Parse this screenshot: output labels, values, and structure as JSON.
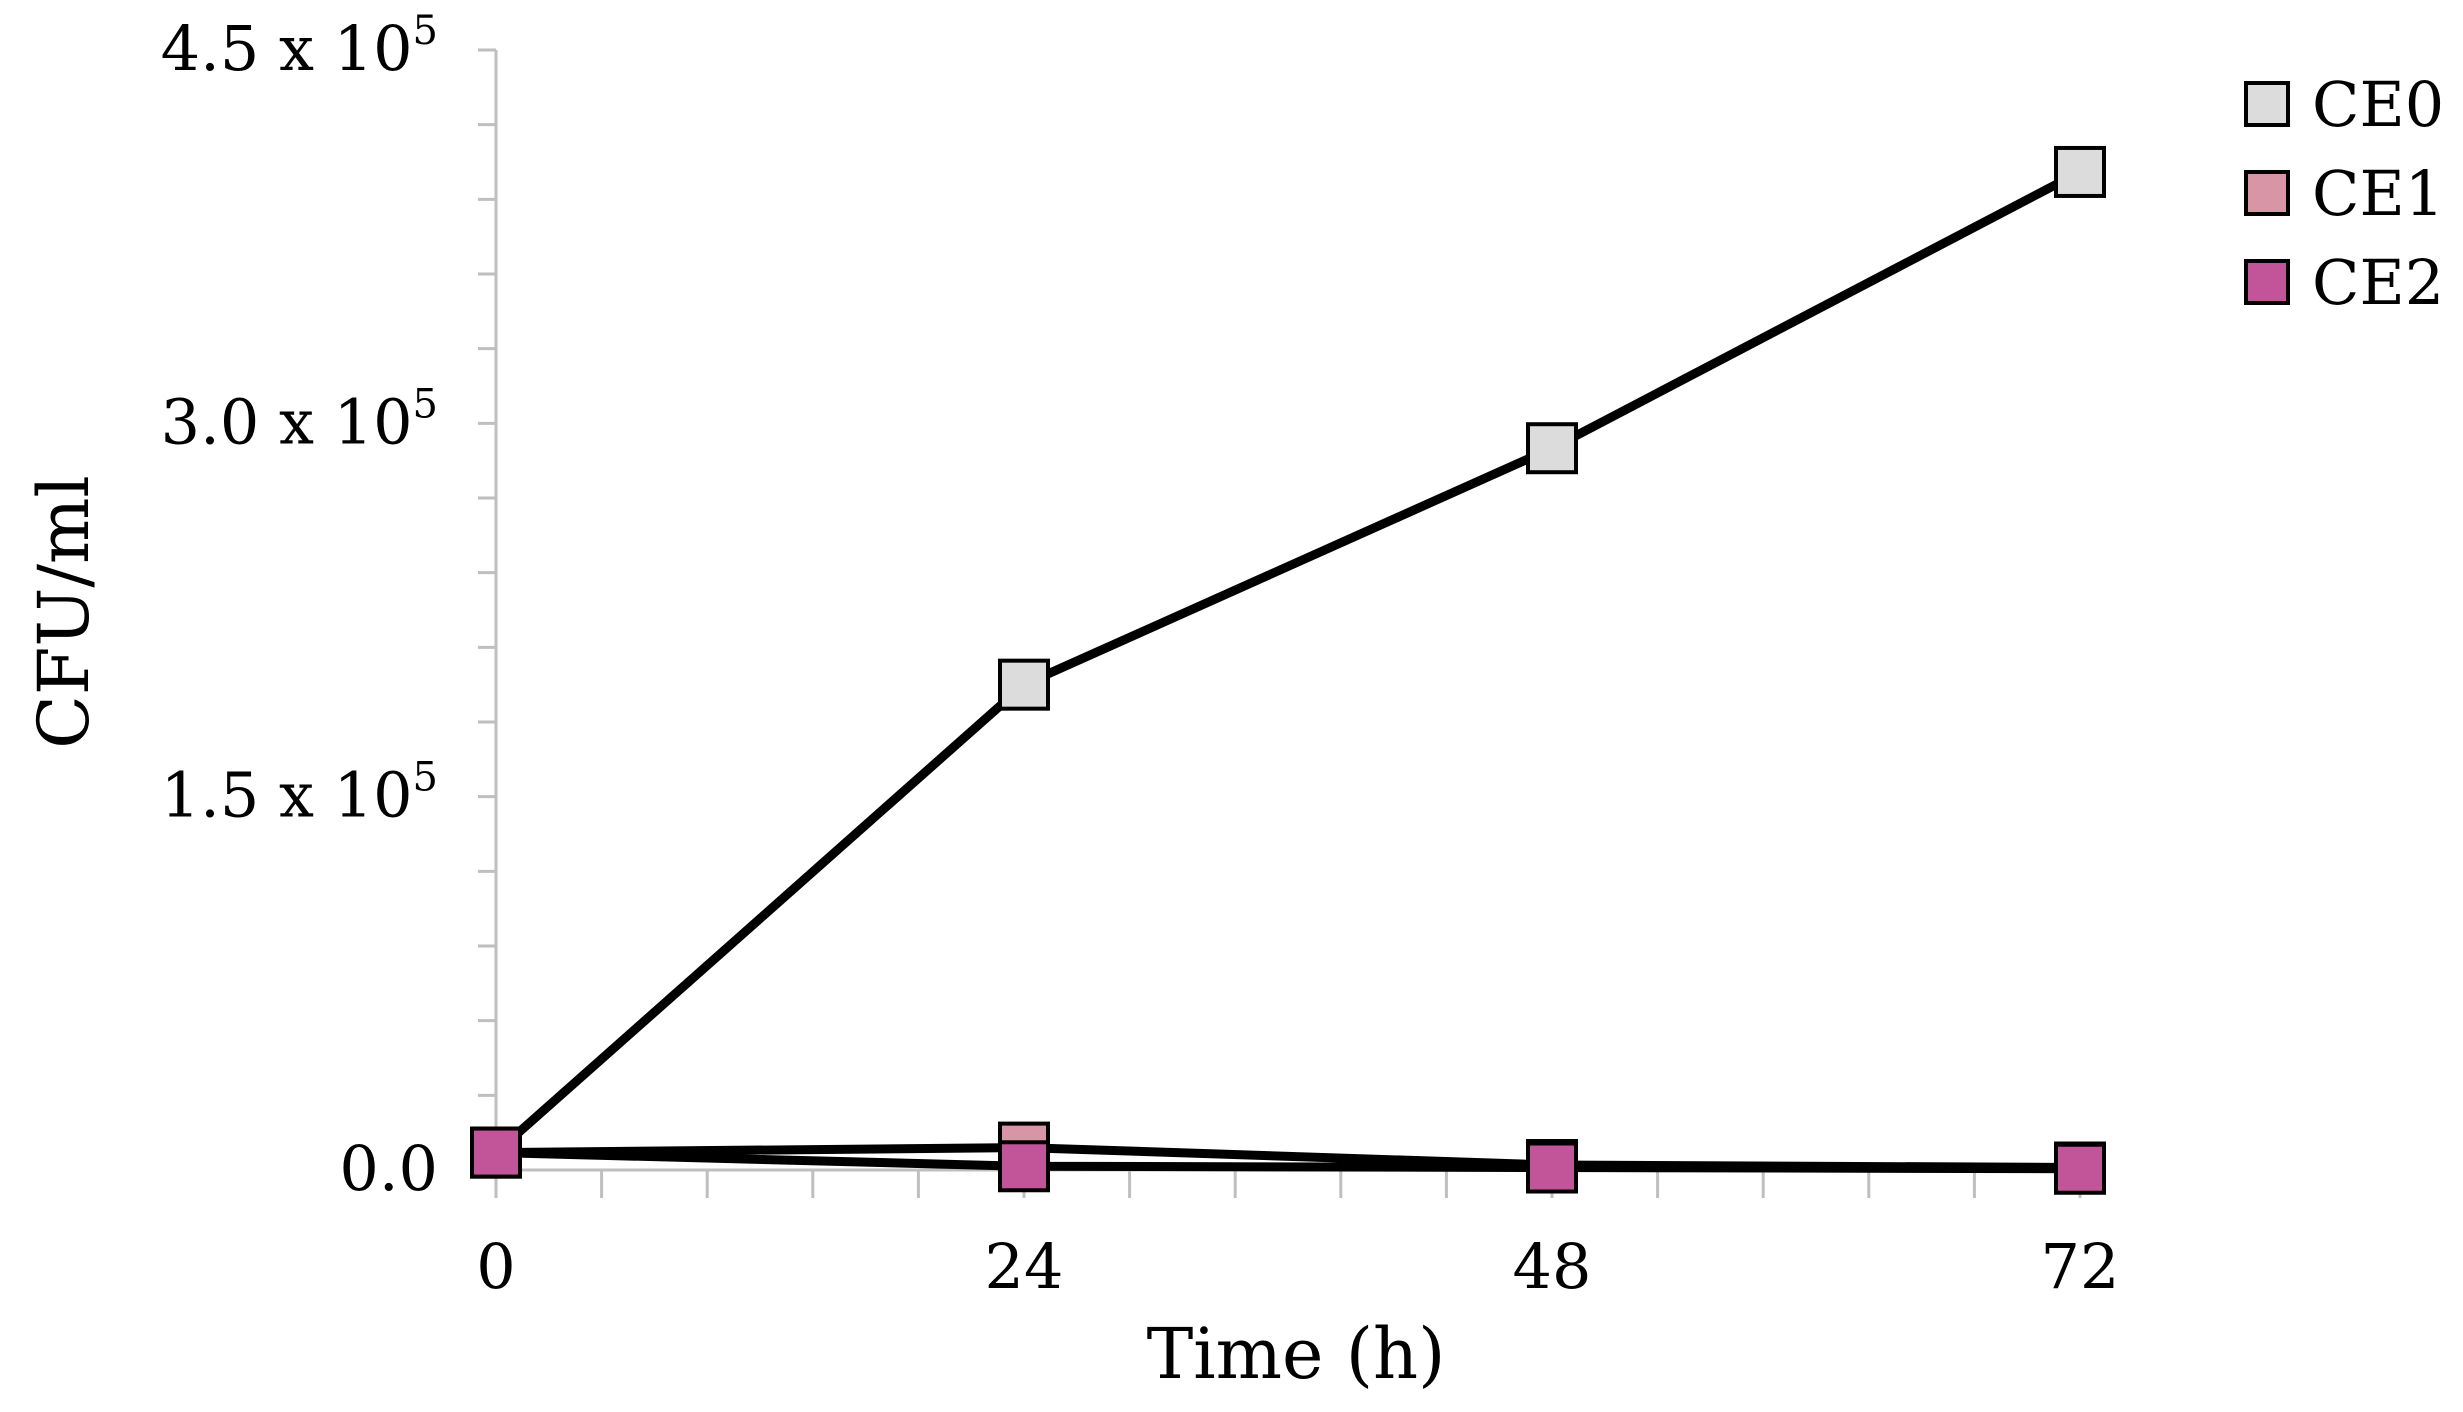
{
  "chart_data": {
    "type": "line",
    "title": "",
    "xlabel": "Time (h)",
    "ylabel": "CFU/ml",
    "x": [
      0,
      24,
      48,
      72
    ],
    "xlim": [
      0,
      72
    ],
    "ylim": [
      0,
      450000
    ],
    "x_ticks": [
      {
        "value": 0,
        "label": "0"
      },
      {
        "value": 24,
        "label": "24"
      },
      {
        "value": 48,
        "label": "48"
      },
      {
        "value": 72,
        "label": "72"
      }
    ],
    "y_ticks": [
      {
        "value": 0,
        "mantissa": "0.0",
        "exp": ""
      },
      {
        "value": 150000,
        "mantissa": "1.5 x 10",
        "exp": "5"
      },
      {
        "value": 300000,
        "mantissa": "3.0 x 10",
        "exp": "5"
      },
      {
        "value": 450000,
        "mantissa": "4.5 x 10",
        "exp": "5"
      }
    ],
    "y_minor_step": 30000,
    "x_minor_step": 4.8,
    "grid": false,
    "legend_position": "top-right",
    "series": [
      {
        "name": "CE0",
        "values": [
          7000,
          195000,
          290000,
          401000
        ],
        "color": "#dcdcdc"
      },
      {
        "name": "CE1",
        "values": [
          7000,
          9000,
          2000,
          1000
        ],
        "color": "#d895a6"
      },
      {
        "name": "CE2",
        "values": [
          7000,
          1500,
          1000,
          500
        ],
        "color": "#c2549a"
      }
    ],
    "line_color": "#000000"
  }
}
